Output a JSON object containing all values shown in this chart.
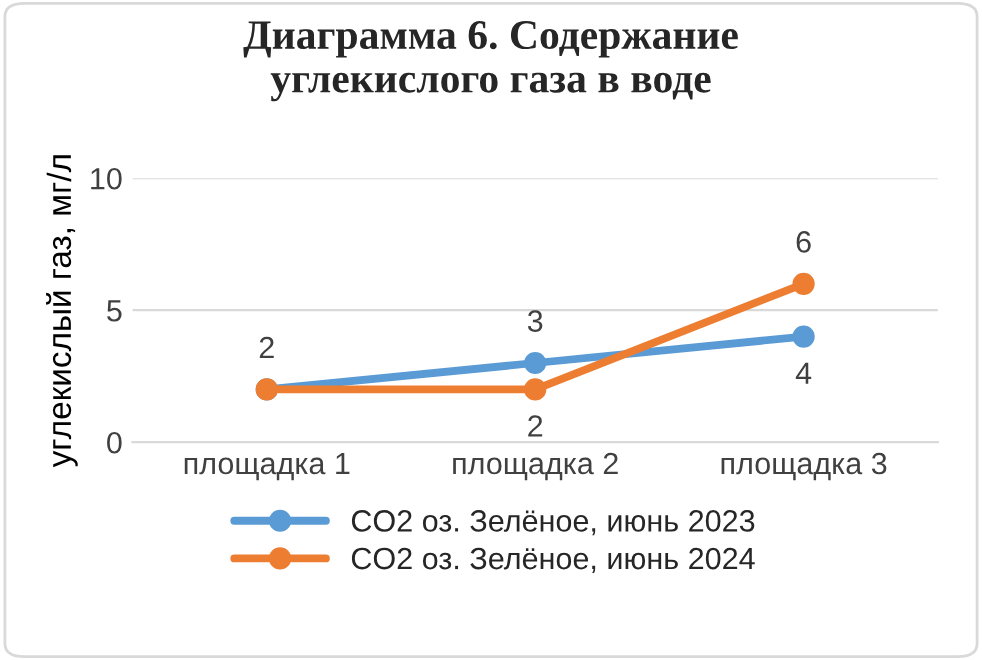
{
  "chart_data": {
    "type": "line",
    "title": "Диаграмма 6. Содержание\nуглекислого газа в воде",
    "ylabel": "углекислый газ, мг/л",
    "categories": [
      "площадка 1",
      "площадка 2",
      "площадка 3"
    ],
    "series": [
      {
        "name": "CO2 оз. Зелёное, июнь 2023",
        "color": "#5b9bd5",
        "values": [
          2,
          3,
          4
        ],
        "value_labels": [
          "2",
          "3",
          "4"
        ]
      },
      {
        "name": "CO2 оз. Зелёное, июнь 2024",
        "color": "#ed7d31",
        "values": [
          2,
          2,
          6
        ],
        "value_labels": [
          null,
          "2",
          "6"
        ]
      }
    ],
    "ylim": [
      0,
      10
    ],
    "yticks": [
      0,
      5,
      10
    ],
    "grid": "y",
    "legend": "bottom",
    "marker": "circle",
    "line_style": "solid"
  }
}
